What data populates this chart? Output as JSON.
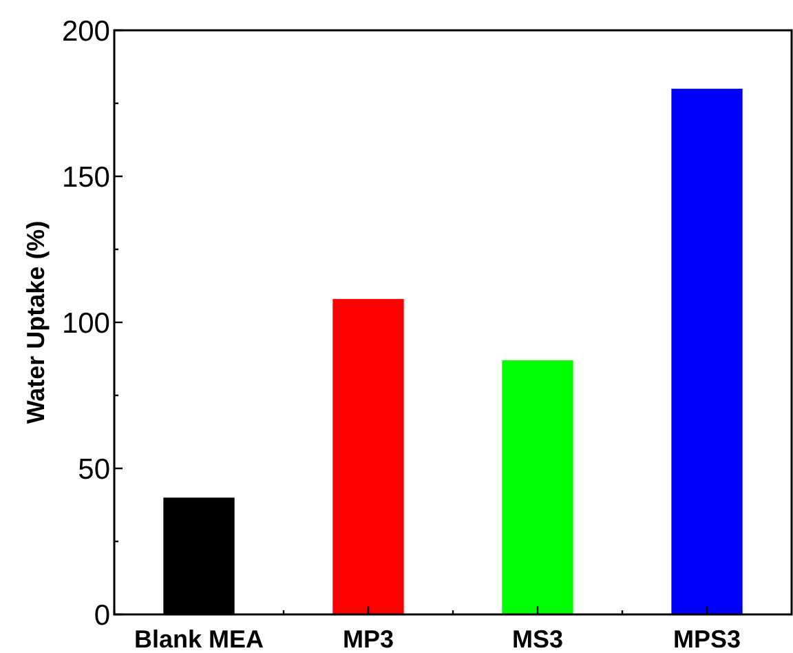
{
  "chart_data": {
    "type": "bar",
    "ylabel": "Water Uptake (%)",
    "categories": [
      "Blank MEA",
      "MP3",
      "MS3",
      "MPS3"
    ],
    "values": [
      40,
      108,
      87,
      180
    ],
    "colors": [
      "#000000",
      "#ff0000",
      "#00ff00",
      "#0000ff"
    ],
    "ylim": [
      0,
      200
    ],
    "yticks": [
      0,
      {
        "value": 25,
        "label": null
      },
      50,
      {
        "value": 75,
        "label": null
      },
      100,
      {
        "value": 125,
        "label": null
      },
      150,
      {
        "value": 175,
        "label": null
      },
      200
    ],
    "grid": false
  }
}
